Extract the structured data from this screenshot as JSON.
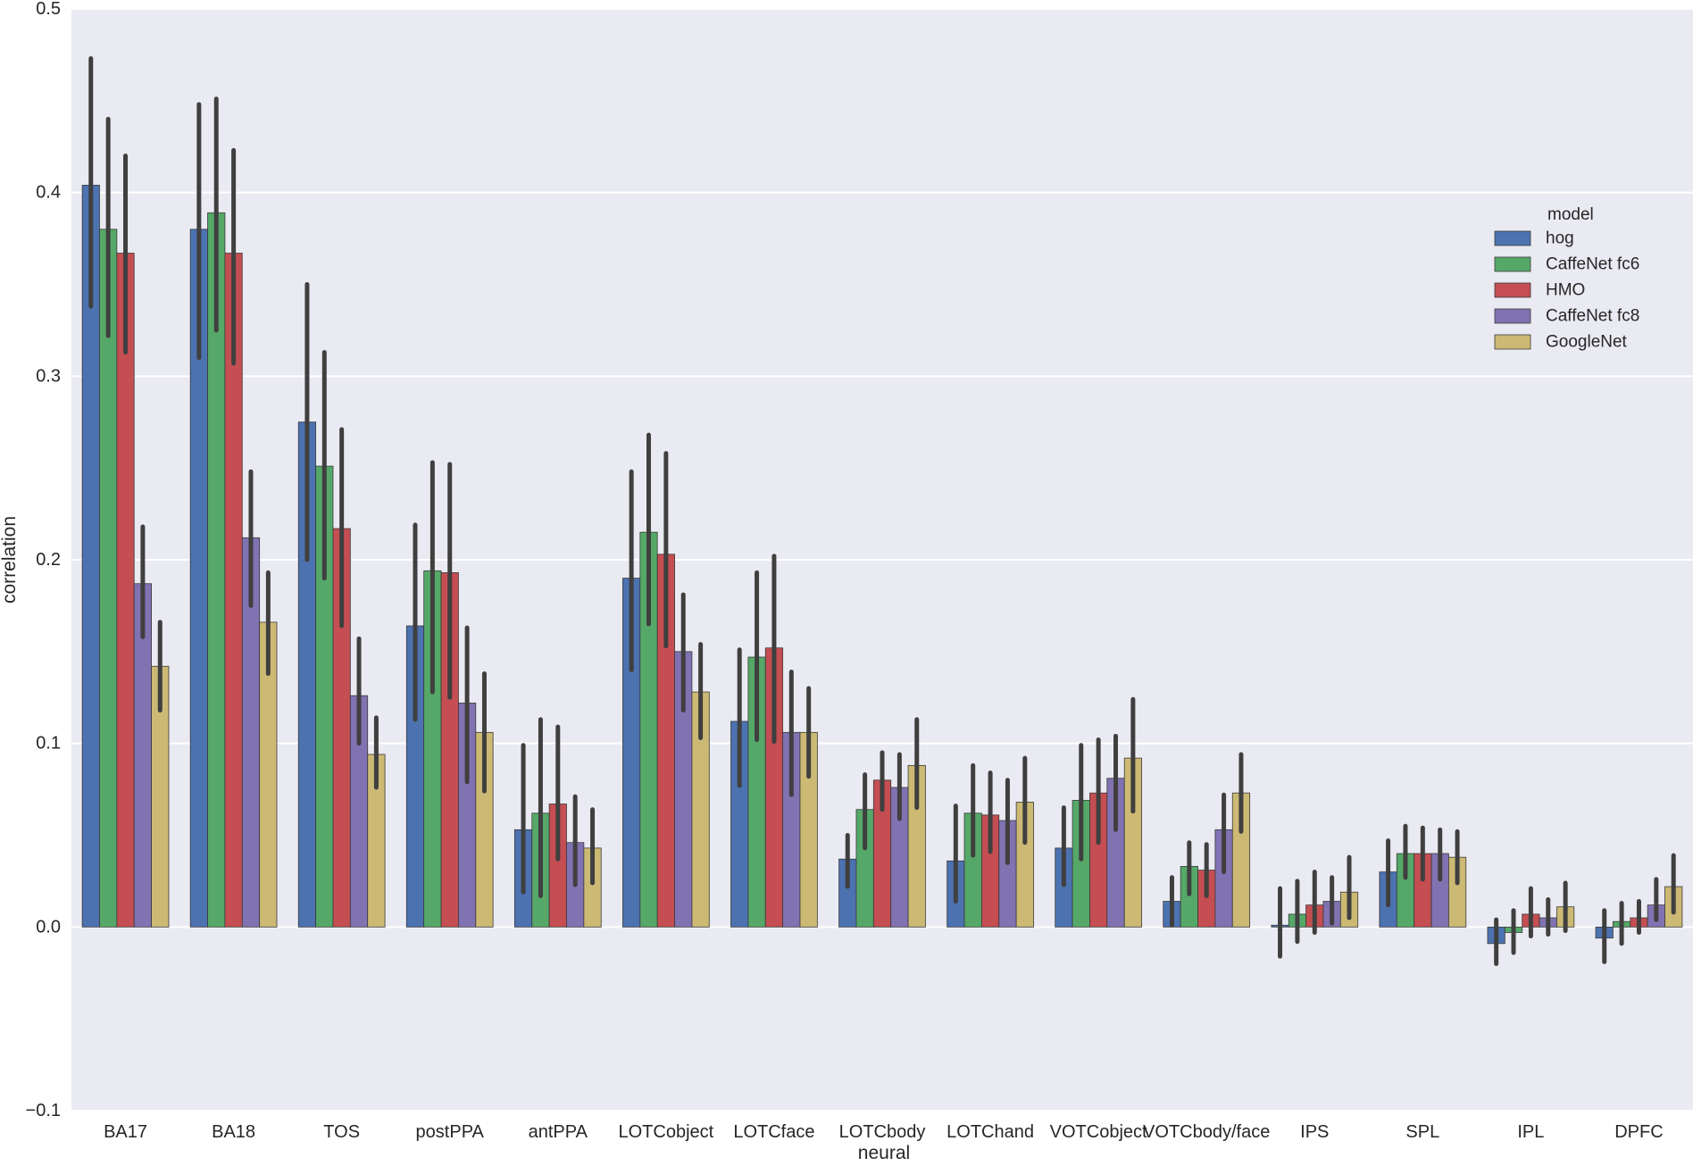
{
  "chart_data": {
    "type": "bar",
    "xlabel": "neural",
    "ylabel": "correlation",
    "ylim": [
      -0.1,
      0.5
    ],
    "yticks": [
      -0.1,
      0.0,
      0.1,
      0.2,
      0.3,
      0.4,
      0.5
    ],
    "ytick_labels": [
      "−0.1",
      "0.0",
      "0.1",
      "0.2",
      "0.3",
      "0.4",
      "0.5"
    ],
    "grid": true,
    "legend": {
      "title": "model",
      "placement": "right"
    },
    "categories": [
      "BA17",
      "BA18",
      "TOS",
      "postPPA",
      "antPPA",
      "LOTCobject",
      "LOTCface",
      "LOTCbody",
      "LOTChand",
      "VOTCobject",
      "VOTCbody/face",
      "IPS",
      "SPL",
      "IPL",
      "DPFC"
    ],
    "series": [
      {
        "name": "hog",
        "color": "#4c72b0",
        "values": [
          0.404,
          0.38,
          0.275,
          0.164,
          0.053,
          0.19,
          0.112,
          0.037,
          0.036,
          0.043,
          0.014,
          0.001,
          0.03,
          -0.009,
          -0.006
        ],
        "ci_low": [
          0.338,
          0.31,
          0.2,
          0.113,
          0.019,
          0.14,
          0.077,
          0.022,
          0.014,
          0.023,
          0.001,
          -0.016,
          0.012,
          -0.02,
          -0.019
        ],
        "ci_high": [
          0.473,
          0.448,
          0.35,
          0.219,
          0.099,
          0.248,
          0.151,
          0.05,
          0.066,
          0.065,
          0.027,
          0.021,
          0.047,
          0.004,
          0.009
        ]
      },
      {
        "name": "CaffeNet fc6",
        "color": "#55a868",
        "values": [
          0.38,
          0.389,
          0.251,
          0.194,
          0.062,
          0.215,
          0.147,
          0.064,
          0.062,
          0.069,
          0.033,
          0.007,
          0.04,
          -0.003,
          0.003
        ],
        "ci_low": [
          0.322,
          0.325,
          0.19,
          0.128,
          0.017,
          0.165,
          0.102,
          0.043,
          0.039,
          0.037,
          0.018,
          -0.008,
          0.027,
          -0.014,
          -0.009
        ],
        "ci_high": [
          0.44,
          0.451,
          0.313,
          0.253,
          0.113,
          0.268,
          0.193,
          0.083,
          0.088,
          0.099,
          0.046,
          0.025,
          0.055,
          0.009,
          0.013
        ]
      },
      {
        "name": "HMO",
        "color": "#c44e52",
        "values": [
          0.367,
          0.367,
          0.217,
          0.193,
          0.067,
          0.203,
          0.152,
          0.08,
          0.061,
          0.073,
          0.031,
          0.012,
          0.04,
          0.007,
          0.005
        ],
        "ci_low": [
          0.313,
          0.307,
          0.164,
          0.125,
          0.037,
          0.153,
          0.101,
          0.064,
          0.041,
          0.046,
          0.017,
          -0.003,
          0.026,
          -0.005,
          -0.003
        ],
        "ci_high": [
          0.42,
          0.423,
          0.271,
          0.252,
          0.109,
          0.258,
          0.202,
          0.095,
          0.084,
          0.102,
          0.045,
          0.03,
          0.054,
          0.021,
          0.014
        ]
      },
      {
        "name": "CaffeNet fc8",
        "color": "#8172b2",
        "values": [
          0.187,
          0.212,
          0.126,
          0.122,
          0.046,
          0.15,
          0.106,
          0.076,
          0.058,
          0.081,
          0.053,
          0.014,
          0.04,
          0.005,
          0.012
        ],
        "ci_low": [
          0.158,
          0.175,
          0.1,
          0.079,
          0.023,
          0.118,
          0.072,
          0.059,
          0.035,
          0.053,
          0.03,
          0.002,
          0.026,
          -0.004,
          0.004
        ],
        "ci_high": [
          0.218,
          0.248,
          0.157,
          0.163,
          0.071,
          0.181,
          0.139,
          0.094,
          0.08,
          0.104,
          0.072,
          0.027,
          0.053,
          0.015,
          0.026
        ]
      },
      {
        "name": "GoogleNet",
        "color": "#ccb974",
        "values": [
          0.142,
          0.166,
          0.094,
          0.106,
          0.043,
          0.128,
          0.106,
          0.088,
          0.068,
          0.092,
          0.073,
          0.019,
          0.038,
          0.011,
          0.022
        ],
        "ci_low": [
          0.118,
          0.138,
          0.076,
          0.074,
          0.024,
          0.103,
          0.082,
          0.065,
          0.046,
          0.063,
          0.052,
          0.005,
          0.024,
          -0.002,
          0.008
        ],
        "ci_high": [
          0.166,
          0.193,
          0.114,
          0.138,
          0.064,
          0.154,
          0.13,
          0.113,
          0.092,
          0.124,
          0.094,
          0.038,
          0.052,
          0.024,
          0.039
        ]
      }
    ]
  }
}
